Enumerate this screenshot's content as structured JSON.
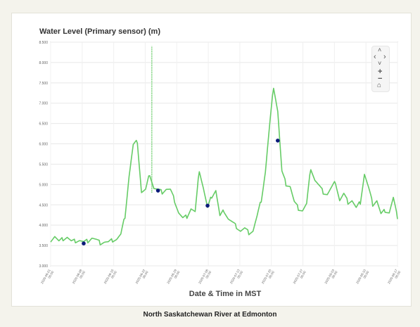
{
  "caption": "North Saskatchewan River at Edmonton",
  "chart_data": {
    "type": "line",
    "title": "Water Level (Primary sensor) (m)",
    "xlabel": "Date & Time in MST",
    "ylabel": "",
    "ylim": [
      3.0,
      8.5
    ],
    "yticks": [
      "3.000",
      "3.500",
      "4.000",
      "4.500",
      "5.000",
      "5.500",
      "6.000",
      "6.500",
      "7.000",
      "7.500",
      "8.000",
      "8.500"
    ],
    "xticks": [
      "2020-06-01 00:00",
      "2020-06-08 00:00",
      "2020-06-15 00:00",
      "2020-06-22 00:00",
      "2020-06-29 00:00",
      "2020-07-06 00:00",
      "2020-07-13 00:00",
      "2020-07-20 00:00",
      "2020-07-27 00:00",
      "2020-08-03 00:00",
      "2020-08-10 00:00",
      "2020-08-17 00:00"
    ],
    "grid": true,
    "line_color": "#66cc66",
    "marker_color": "#0b1a7a",
    "series": [
      {
        "x": [
          0,
          1,
          2,
          3,
          4,
          5,
          6,
          7,
          8,
          9,
          10,
          11,
          12,
          13,
          14,
          15,
          16,
          17,
          18,
          19,
          20,
          21,
          22,
          23,
          24,
          25,
          26,
          27,
          28,
          29,
          30,
          31,
          32,
          33,
          34,
          35,
          36,
          37,
          38,
          39,
          40,
          41,
          42,
          43,
          44,
          45,
          46,
          47,
          48,
          49,
          50,
          51,
          52,
          53,
          54,
          55,
          56,
          57,
          58,
          59,
          60,
          61,
          62,
          63,
          64,
          65,
          66,
          67,
          68,
          69,
          70,
          71,
          72,
          73,
          74,
          75,
          76,
          77,
          78,
          79,
          80,
          81,
          82,
          83,
          84
        ],
        "y": [
          3.62,
          3.72,
          3.58,
          3.65,
          3.7,
          3.58,
          3.6,
          3.62,
          3.56,
          3.6,
          3.68,
          3.62,
          3.55,
          3.58,
          3.56,
          3.62,
          3.65,
          3.75,
          4.2,
          5.2,
          5.95,
          6.05,
          4.8,
          4.85,
          5.25,
          4.9,
          4.85,
          4.8,
          4.88,
          4.85,
          4.6,
          4.3,
          4.15,
          4.2,
          4.4,
          4.3,
          5.35,
          4.9,
          4.4,
          4.7,
          4.85,
          4.2,
          4.35,
          4.15,
          4.05,
          3.95,
          3.85,
          3.9,
          3.8,
          3.85,
          4.2,
          4.6,
          5.3,
          6.4,
          7.4,
          6.8,
          5.3,
          5.0,
          4.95,
          4.55,
          4.4,
          4.35,
          4.5,
          5.4,
          5.1,
          4.95,
          4.8,
          4.75,
          4.9,
          5.05,
          4.6,
          4.75,
          4.55,
          4.6,
          4.4,
          4.55,
          5.25,
          4.9,
          4.5,
          4.6,
          4.25,
          4.35,
          4.3,
          4.65,
          4.15
        ]
      }
    ],
    "spike": {
      "x": 24.5,
      "y": 8.4
    },
    "markers": [
      {
        "x": 8,
        "y": 3.55
      },
      {
        "x": 26,
        "y": 4.85
      },
      {
        "x": 38,
        "y": 4.48
      },
      {
        "x": 55,
        "y": 6.08
      }
    ]
  },
  "nav": {
    "up": "˄",
    "left": "‹",
    "right": "›",
    "down": "˅",
    "zoom_in": "+",
    "zoom_out": "−",
    "home": "⌂"
  }
}
